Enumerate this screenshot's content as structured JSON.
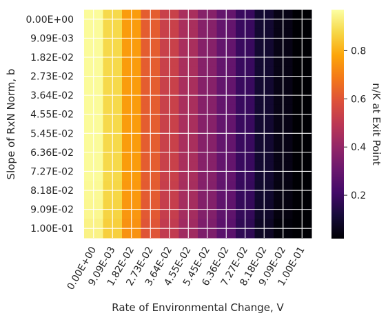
{
  "chart_data": {
    "type": "heatmap",
    "title": "",
    "xlabel": "Rate of Environmental Change, V",
    "ylabel": "Slope of RxN Norm, b",
    "x_ticks": [
      "0.00E+00",
      "9.09E-03",
      "1.82E-02",
      "2.73E-02",
      "3.64E-02",
      "4.55E-02",
      "5.45E-02",
      "6.36E-02",
      "7.27E-02",
      "8.18E-02",
      "9.09E-02",
      "1.00E-01"
    ],
    "y_ticks": [
      "0.00E+00",
      "9.09E-03",
      "1.82E-02",
      "2.73E-02",
      "3.64E-02",
      "4.55E-02",
      "5.45E-02",
      "6.36E-02",
      "7.27E-02",
      "8.18E-02",
      "9.09E-02",
      "1.00E-01"
    ],
    "column_values": [
      0.96,
      0.88,
      0.76,
      0.62,
      0.53,
      0.45,
      0.37,
      0.29,
      0.19,
      0.1,
      0.05,
      0.02
    ],
    "row_drift": [
      0,
      0,
      0,
      0,
      0,
      0,
      0,
      0,
      0,
      -0.005,
      -0.01,
      -0.02
    ],
    "colorbar": {
      "label": "n/K at Exit Point",
      "range": [
        0.02,
        0.97
      ],
      "ticks": [
        0.2,
        0.4,
        0.6,
        0.8
      ],
      "tick_labels": [
        "0.2",
        "0.4",
        "0.6",
        "0.8"
      ],
      "colormap": "inferno"
    },
    "grid": true,
    "grid_color": "#ffffff"
  }
}
